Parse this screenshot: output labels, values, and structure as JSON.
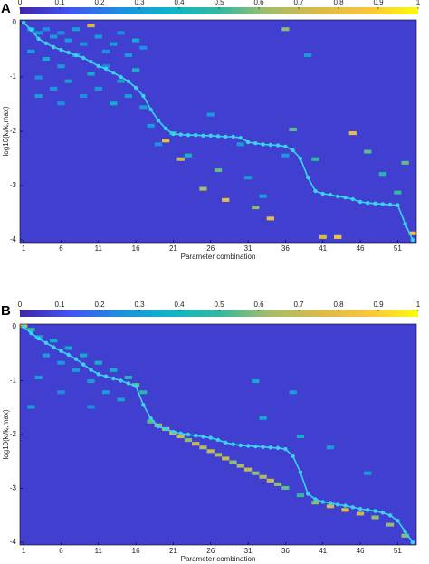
{
  "chart_data": [
    {
      "type": "heatmap",
      "panel": "A",
      "xlabel": "Parameter combination",
      "ylabel": "log10(kᵢ/kᵢ,max)",
      "colormap": [
        "#3e26a8",
        "#4353f0",
        "#1e8ee0",
        "#0fb3c8",
        "#33b8a0",
        "#a3bd6a",
        "#d9ba48",
        "#fbc53c",
        "#f9fb0e"
      ],
      "clim": [
        0,
        1
      ],
      "cticks": [
        0,
        0.1,
        0.2,
        0.3,
        0.4,
        0.5,
        0.6,
        0.7,
        0.8,
        0.9,
        1
      ],
      "xlim": [
        0.5,
        53.5
      ],
      "xticks": [
        1,
        6,
        11,
        16,
        21,
        26,
        31,
        36,
        41,
        46,
        51
      ],
      "ylim": [
        -4.05,
        0.05
      ],
      "yticks": [
        0,
        -1,
        -2,
        -3,
        -4
      ],
      "rows": 60,
      "background": 0.07,
      "cells": [
        [
          2,
          2,
          0.35
        ],
        [
          3,
          3,
          0.3
        ],
        [
          4,
          2,
          0.25
        ],
        [
          5,
          4,
          0.3
        ],
        [
          6,
          3,
          0.25
        ],
        [
          7,
          5,
          0.3
        ],
        [
          8,
          2,
          0.3
        ],
        [
          9,
          6,
          0.25
        ],
        [
          10,
          1,
          0.75
        ],
        [
          11,
          4,
          0.3
        ],
        [
          12,
          8,
          0.25
        ],
        [
          13,
          6,
          0.3
        ],
        [
          14,
          3,
          0.25
        ],
        [
          15,
          9,
          0.3
        ],
        [
          16,
          5,
          0.35
        ],
        [
          17,
          7,
          0.25
        ],
        [
          2,
          8,
          0.3
        ],
        [
          4,
          10,
          0.35
        ],
        [
          6,
          12,
          0.3
        ],
        [
          8,
          9,
          0.3
        ],
        [
          10,
          14,
          0.35
        ],
        [
          12,
          12,
          0.25
        ],
        [
          14,
          16,
          0.3
        ],
        [
          16,
          13,
          0.4
        ],
        [
          3,
          15,
          0.25
        ],
        [
          5,
          18,
          0.3
        ],
        [
          7,
          16,
          0.3
        ],
        [
          9,
          20,
          0.25
        ],
        [
          11,
          18,
          0.3
        ],
        [
          13,
          22,
          0.35
        ],
        [
          15,
          20,
          0.3
        ],
        [
          17,
          23,
          0.3
        ],
        [
          3,
          20,
          0.3
        ],
        [
          6,
          22,
          0.25
        ],
        [
          18,
          28,
          0.3
        ],
        [
          19,
          33,
          0.25
        ],
        [
          20,
          32,
          0.8
        ],
        [
          21,
          30,
          0.45
        ],
        [
          22,
          37,
          0.7
        ],
        [
          23,
          36,
          0.4
        ],
        [
          25,
          45,
          0.65
        ],
        [
          27,
          40,
          0.55
        ],
        [
          28,
          48,
          0.8
        ],
        [
          30,
          33,
          0.3
        ],
        [
          31,
          42,
          0.3
        ],
        [
          32,
          50,
          0.6
        ],
        [
          34,
          53,
          0.8
        ],
        [
          36,
          36,
          0.3
        ],
        [
          37,
          29,
          0.55
        ],
        [
          36,
          2,
          0.6
        ],
        [
          39,
          9,
          0.3
        ],
        [
          40,
          37,
          0.5
        ],
        [
          41,
          58,
          0.75
        ],
        [
          43,
          58,
          0.85
        ],
        [
          45,
          30,
          0.8
        ],
        [
          47,
          35,
          0.55
        ],
        [
          49,
          41,
          0.45
        ],
        [
          51,
          46,
          0.5
        ],
        [
          52,
          38,
          0.55
        ],
        [
          53,
          57,
          0.85
        ],
        [
          26,
          25,
          0.3
        ],
        [
          33,
          47,
          0.3
        ]
      ],
      "line_color": "#38d4f0",
      "x": [
        1,
        2,
        3,
        4,
        5,
        6,
        7,
        8,
        9,
        10,
        11,
        12,
        13,
        14,
        15,
        16,
        17,
        18,
        19,
        20,
        21,
        22,
        23,
        24,
        25,
        26,
        27,
        28,
        29,
        30,
        31,
        32,
        33,
        34,
        35,
        36,
        37,
        38,
        39,
        40,
        41,
        42,
        43,
        44,
        45,
        46,
        47,
        48,
        49,
        50,
        51,
        52,
        53
      ],
      "values": [
        0,
        -0.13,
        -0.3,
        -0.38,
        -0.45,
        -0.5,
        -0.55,
        -0.6,
        -0.65,
        -0.72,
        -0.8,
        -0.85,
        -0.92,
        -1.0,
        -1.08,
        -1.2,
        -1.35,
        -1.6,
        -1.8,
        -1.95,
        -2.05,
        -2.06,
        -2.07,
        -2.07,
        -2.08,
        -2.08,
        -2.09,
        -2.1,
        -2.1,
        -2.12,
        -2.2,
        -2.22,
        -2.24,
        -2.25,
        -2.26,
        -2.28,
        -2.35,
        -2.5,
        -2.85,
        -3.1,
        -3.15,
        -3.17,
        -3.2,
        -3.22,
        -3.25,
        -3.3,
        -3.32,
        -3.33,
        -3.34,
        -3.35,
        -3.36,
        -3.7,
        -4.0
      ]
    },
    {
      "type": "heatmap",
      "panel": "B",
      "xlabel": "Parameter combination",
      "ylabel": "log10(kᵢ/kᵢ,max)",
      "colormap": [
        "#3e26a8",
        "#4353f0",
        "#1e8ee0",
        "#0fb3c8",
        "#33b8a0",
        "#a3bd6a",
        "#d9ba48",
        "#fbc53c",
        "#f9fb0e"
      ],
      "clim": [
        0,
        1
      ],
      "cticks": [
        0,
        0.1,
        0.2,
        0.3,
        0.4,
        0.5,
        0.6,
        0.7,
        0.8,
        0.9,
        1
      ],
      "xlim": [
        0.5,
        53.5
      ],
      "xticks": [
        1,
        6,
        11,
        16,
        21,
        26,
        31,
        36,
        41,
        46,
        51
      ],
      "ylim": [
        -4.05,
        0.05
      ],
      "yticks": [
        0,
        -1,
        -2,
        -3,
        -4
      ],
      "rows": 60,
      "background": 0.07,
      "cells": [
        [
          1,
          0,
          0.7
        ],
        [
          2,
          1,
          0.45
        ],
        [
          3,
          3,
          0.35
        ],
        [
          5,
          4,
          0.35
        ],
        [
          7,
          6,
          0.35
        ],
        [
          9,
          8,
          0.35
        ],
        [
          11,
          10,
          0.4
        ],
        [
          13,
          12,
          0.35
        ],
        [
          15,
          14,
          0.45
        ],
        [
          16,
          16,
          0.55
        ],
        [
          17,
          18,
          0.45
        ],
        [
          4,
          8,
          0.3
        ],
        [
          6,
          10,
          0.3
        ],
        [
          8,
          12,
          0.3
        ],
        [
          10,
          15,
          0.3
        ],
        [
          12,
          18,
          0.3
        ],
        [
          14,
          20,
          0.3
        ],
        [
          3,
          14,
          0.3
        ],
        [
          6,
          18,
          0.25
        ],
        [
          2,
          22,
          0.3
        ],
        [
          10,
          22,
          0.25
        ],
        [
          32,
          15,
          0.35
        ],
        [
          33,
          25,
          0.35
        ],
        [
          37,
          18,
          0.3
        ],
        [
          38,
          30,
          0.35
        ],
        [
          42,
          33,
          0.3
        ],
        [
          47,
          40,
          0.3
        ],
        [
          18,
          26,
          0.55
        ],
        [
          19,
          27,
          0.65
        ],
        [
          20,
          28,
          0.7
        ],
        [
          21,
          29,
          0.75
        ],
        [
          22,
          30,
          0.7
        ],
        [
          23,
          31,
          0.6
        ],
        [
          24,
          32,
          0.7
        ],
        [
          25,
          33,
          0.65
        ],
        [
          26,
          34,
          0.7
        ],
        [
          27,
          35,
          0.65
        ],
        [
          28,
          36,
          0.7
        ],
        [
          29,
          37,
          0.6
        ],
        [
          30,
          38,
          0.65
        ],
        [
          31,
          39,
          0.7
        ],
        [
          32,
          40,
          0.6
        ],
        [
          33,
          41,
          0.65
        ],
        [
          34,
          42,
          0.7
        ],
        [
          35,
          43,
          0.6
        ],
        [
          36,
          44,
          0.55
        ],
        [
          38,
          46,
          0.5
        ],
        [
          40,
          48,
          0.6
        ],
        [
          42,
          49,
          0.7
        ],
        [
          44,
          50,
          0.8
        ],
        [
          46,
          51,
          0.7
        ],
        [
          48,
          52,
          0.6
        ],
        [
          50,
          54,
          0.6
        ],
        [
          52,
          57,
          0.6
        ]
      ],
      "line_color": "#38d4f0",
      "x": [
        1,
        2,
        3,
        4,
        5,
        6,
        7,
        8,
        9,
        10,
        11,
        12,
        13,
        14,
        15,
        16,
        17,
        18,
        19,
        20,
        21,
        22,
        23,
        24,
        25,
        26,
        27,
        28,
        29,
        30,
        31,
        32,
        33,
        34,
        35,
        36,
        37,
        38,
        39,
        40,
        41,
        42,
        43,
        44,
        45,
        46,
        47,
        48,
        49,
        50,
        51,
        52,
        53
      ],
      "values": [
        0,
        -0.12,
        -0.22,
        -0.3,
        -0.38,
        -0.45,
        -0.52,
        -0.6,
        -0.7,
        -0.8,
        -0.88,
        -0.92,
        -0.96,
        -1.0,
        -1.05,
        -1.1,
        -1.45,
        -1.7,
        -1.85,
        -1.9,
        -1.95,
        -1.98,
        -2.0,
        -2.02,
        -2.04,
        -2.06,
        -2.1,
        -2.15,
        -2.18,
        -2.2,
        -2.21,
        -2.22,
        -2.23,
        -2.24,
        -2.25,
        -2.27,
        -2.4,
        -2.7,
        -3.1,
        -3.2,
        -3.25,
        -3.27,
        -3.3,
        -3.32,
        -3.35,
        -3.38,
        -3.4,
        -3.42,
        -3.45,
        -3.5,
        -3.6,
        -3.8,
        -4.0
      ]
    }
  ]
}
